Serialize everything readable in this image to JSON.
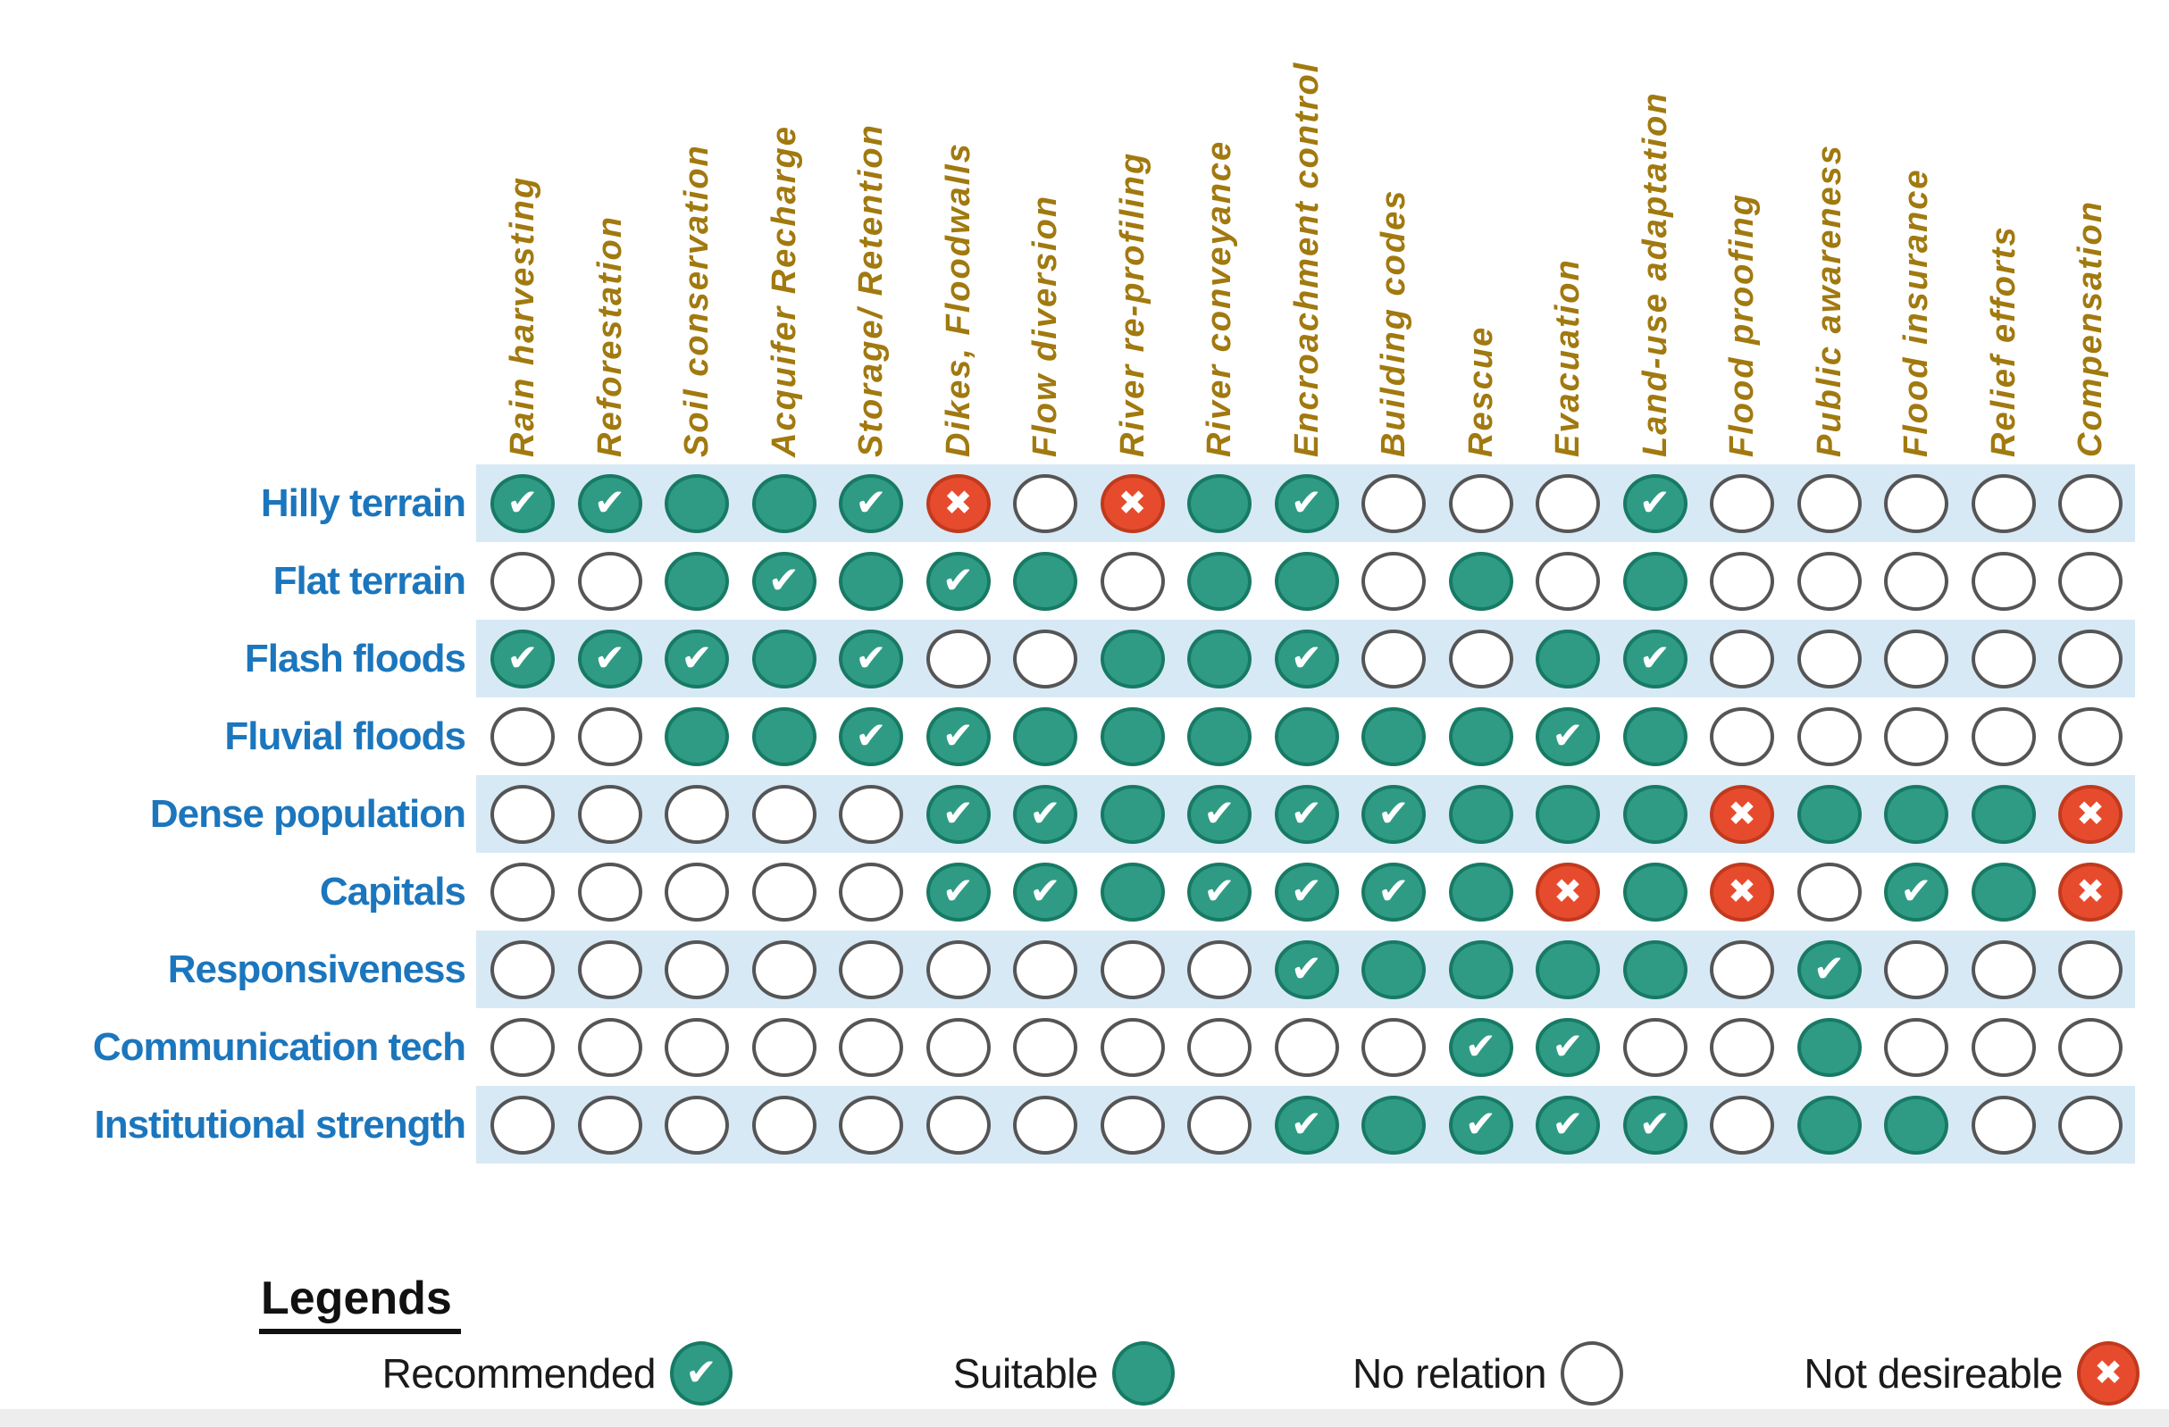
{
  "colors": {
    "positive": "#2f9b84",
    "positive_border": "#187a64",
    "negative": "#e74b2d",
    "negative_border": "#c03a1e",
    "neutral_border": "#555555",
    "band": "#d8e9f6",
    "row_label": "#1b76bd",
    "header": "#a1790f"
  },
  "marks": {
    "check": "✔",
    "cross": "✖"
  },
  "cell_states": {
    "R": "recommended",
    "S": "suitable",
    "N": "no-relation",
    "X": "not-desirable"
  },
  "matrix": {
    "columns": [
      "Rain harvesting",
      "Reforestation",
      "Soil conservation",
      "Acquifer Recharge",
      "Storage/ Retention",
      "Dikes, Floodwalls",
      "Flow diversion",
      "River re-profiling",
      "River conveyance",
      "Encroachment control",
      "Building codes",
      "Rescue",
      "Evacuation",
      "Land-use adaptation",
      "Flood proofing",
      "Public awareness",
      "Flood insurance",
      "Relief efforts",
      "Compensation"
    ],
    "rows": [
      {
        "label": "Hilly terrain",
        "cells": [
          "R",
          "R",
          "S",
          "S",
          "R",
          "X",
          "N",
          "X",
          "S",
          "R",
          "N",
          "N",
          "N",
          "R",
          "N",
          "N",
          "N",
          "N",
          "N"
        ]
      },
      {
        "label": "Flat terrain",
        "cells": [
          "N",
          "N",
          "S",
          "R",
          "S",
          "R",
          "S",
          "N",
          "S",
          "S",
          "N",
          "S",
          "N",
          "S",
          "N",
          "N",
          "N",
          "N",
          "N"
        ]
      },
      {
        "label": "Flash floods",
        "cells": [
          "R",
          "R",
          "R",
          "S",
          "R",
          "N",
          "N",
          "S",
          "S",
          "R",
          "N",
          "N",
          "S",
          "R",
          "N",
          "N",
          "N",
          "N",
          "N"
        ]
      },
      {
        "label": "Fluvial floods",
        "cells": [
          "N",
          "N",
          "S",
          "S",
          "R",
          "R",
          "S",
          "S",
          "S",
          "S",
          "S",
          "S",
          "R",
          "S",
          "N",
          "N",
          "N",
          "N",
          "N"
        ]
      },
      {
        "label": "Dense population",
        "cells": [
          "N",
          "N",
          "N",
          "N",
          "N",
          "R",
          "R",
          "S",
          "R",
          "R",
          "R",
          "S",
          "S",
          "S",
          "X",
          "S",
          "S",
          "S",
          "X"
        ]
      },
      {
        "label": "Capitals",
        "cells": [
          "N",
          "N",
          "N",
          "N",
          "N",
          "R",
          "R",
          "S",
          "R",
          "R",
          "R",
          "S",
          "X",
          "S",
          "X",
          "N",
          "R",
          "S",
          "X"
        ]
      },
      {
        "label": "Responsiveness",
        "cells": [
          "N",
          "N",
          "N",
          "N",
          "N",
          "N",
          "N",
          "N",
          "N",
          "R",
          "S",
          "S",
          "S",
          "S",
          "N",
          "R",
          "N",
          "N",
          "N"
        ]
      },
      {
        "label": "Communication tech",
        "cells": [
          "N",
          "N",
          "N",
          "N",
          "N",
          "N",
          "N",
          "N",
          "N",
          "N",
          "N",
          "R",
          "R",
          "N",
          "N",
          "S",
          "N",
          "N",
          "N"
        ]
      },
      {
        "label": "Institutional strength",
        "cells": [
          "N",
          "N",
          "N",
          "N",
          "N",
          "N",
          "N",
          "N",
          "N",
          "R",
          "S",
          "R",
          "R",
          "R",
          "N",
          "S",
          "S",
          "N",
          "N"
        ]
      }
    ]
  },
  "legend": {
    "title": "Legends",
    "items": [
      {
        "label": "Recommended",
        "type": "R"
      },
      {
        "label": "Suitable",
        "type": "S"
      },
      {
        "label": "No relation",
        "type": "N"
      },
      {
        "label": "Not desireable",
        "type": "X"
      }
    ]
  }
}
